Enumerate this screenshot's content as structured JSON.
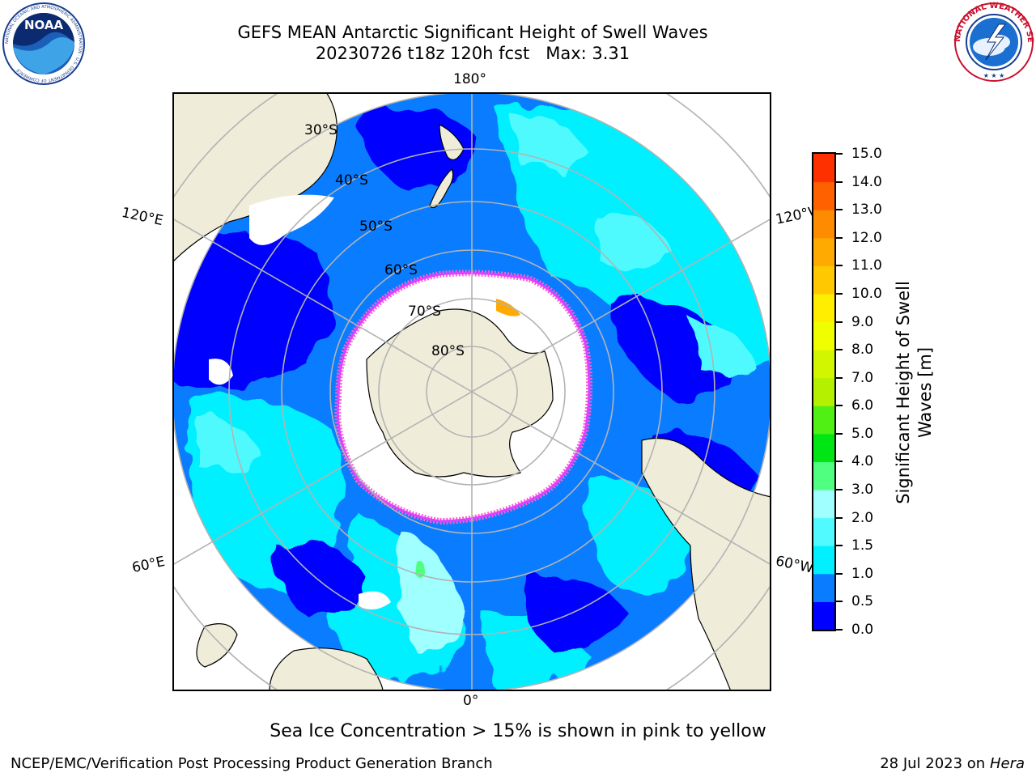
{
  "header": {
    "title_line1": "GEFS MEAN Antarctic Significant Height of Swell Waves",
    "title_line2": "20230726 t18z 120h fcst   Max: 3.31"
  },
  "logos": {
    "left": {
      "name": "noaa-logo",
      "text": "NOAA",
      "ring_text": "NATIONAL OCEANIC AND ATMOSPHERIC ADMINISTRATION · U.S. DEPARTMENT OF COMMERCE"
    },
    "right": {
      "name": "nws-logo",
      "ring_text": "NATIONAL WEATHER SERVICE"
    }
  },
  "map": {
    "projection": "south-polar-stereographic",
    "longitude_labels": [
      "180°",
      "120°E",
      "120°W",
      "60°E",
      "60°W",
      "0°"
    ],
    "latitude_labels": [
      "30°S",
      "40°S",
      "50°S",
      "60°S",
      "70°S",
      "80°S"
    ],
    "colors": {
      "land": "#efedd9",
      "ice": "#ffffff",
      "grid": "#b3b3b3",
      "ice_edge": [
        "#ff60d0",
        "#e040ff",
        "#ffd020"
      ]
    }
  },
  "colorbar": {
    "label": "Significant Height of Swell Waves [m]",
    "ticks": [
      "15.0",
      "14.0",
      "13.0",
      "12.0",
      "11.0",
      "10.0",
      "9.0",
      "8.0",
      "7.0",
      "6.0",
      "5.0",
      "4.0",
      "3.0",
      "2.0",
      "1.5",
      "1.0",
      "0.5",
      "0.0"
    ],
    "colors_bottom_to_top": [
      "#0000ff",
      "#0a7cff",
      "#00f0ff",
      "#50faff",
      "#a0ffff",
      "#50ff80",
      "#00e614",
      "#50f014",
      "#b4f000",
      "#d2f500",
      "#f0ff00",
      "#ffee00",
      "#ffc800",
      "#ffaa00",
      "#ff8c00",
      "#ff6000",
      "#ff3000"
    ]
  },
  "note": "Sea Ice Concentration > 15% is shown in pink to yellow",
  "footer": {
    "left": "NCEP/EMC/Verification Post Processing Product Generation Branch",
    "right_prefix": "28 Jul 2023 on ",
    "right_host": "Hera"
  }
}
